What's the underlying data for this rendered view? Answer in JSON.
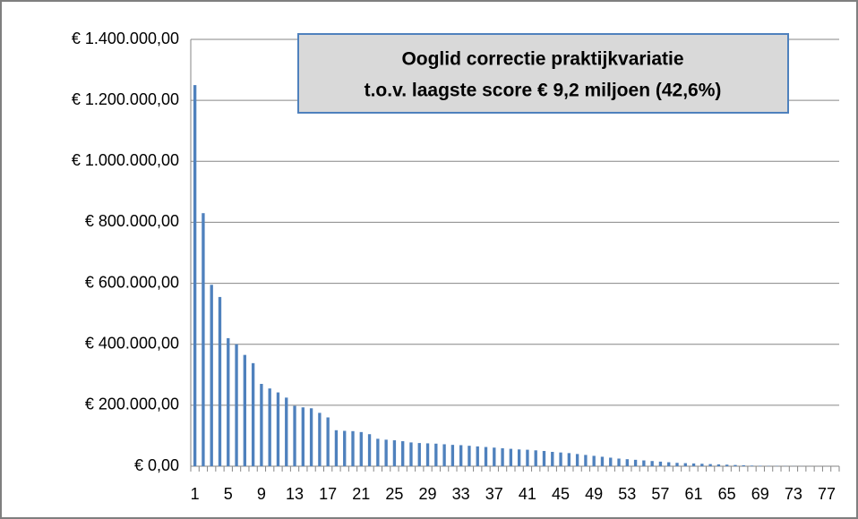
{
  "chart_data": {
    "type": "bar",
    "annotation": [
      "Ooglid correctie praktijkvariatie",
      "t.o.v. laagste score € 9,2 miljoen (42,6%)"
    ],
    "categories": [
      "1",
      null,
      null,
      null,
      "5",
      null,
      null,
      null,
      "9",
      null,
      null,
      null,
      "13",
      null,
      null,
      null,
      "17",
      null,
      null,
      null,
      "21",
      null,
      null,
      null,
      "25",
      null,
      null,
      null,
      "29",
      null,
      null,
      null,
      "33",
      null,
      null,
      null,
      "37",
      null,
      null,
      null,
      "41",
      null,
      null,
      null,
      "45",
      null,
      null,
      null,
      "49",
      null,
      null,
      null,
      "53",
      null,
      null,
      null,
      "57",
      null,
      null,
      null,
      "61",
      null,
      null,
      null,
      "65",
      null,
      null,
      null,
      "69",
      null,
      null,
      null,
      "73",
      null,
      null,
      null,
      "77",
      null
    ],
    "values": [
      1250000,
      830000,
      595000,
      555000,
      420000,
      400000,
      365000,
      338000,
      270000,
      255000,
      242000,
      225000,
      198000,
      193000,
      190000,
      175000,
      160000,
      118000,
      116000,
      115000,
      112000,
      105000,
      90000,
      87000,
      85000,
      82000,
      78000,
      76000,
      75000,
      74000,
      72000,
      70000,
      69000,
      67000,
      65000,
      63000,
      61000,
      59000,
      57000,
      55000,
      54000,
      52000,
      50000,
      47000,
      45000,
      43000,
      40000,
      37000,
      34000,
      31000,
      28000,
      25000,
      23000,
      21000,
      19000,
      17000,
      15000,
      13000,
      11000,
      10000,
      9000,
      8000,
      7000,
      6000,
      5000,
      4000,
      3000,
      2000,
      1500,
      1000,
      800,
      600,
      400,
      300,
      200,
      100,
      50,
      0
    ],
    "color": "#4f81bd",
    "ylim": [
      0,
      1400000
    ],
    "yticks": [
      {
        "value": 0,
        "label": "€ 0,00"
      },
      {
        "value": 200000,
        "label": "€ 200.000,00"
      },
      {
        "value": 400000,
        "label": "€ 400.000,00"
      },
      {
        "value": 600000,
        "label": "€ 600.000,00"
      },
      {
        "value": 800000,
        "label": "€ 800.000,00"
      },
      {
        "value": 1000000,
        "label": "€ 1.000.000,00"
      },
      {
        "value": 1200000,
        "label": "€ 1.200.000,00"
      },
      {
        "value": 1400000,
        "label": "€ 1.400.000,00"
      }
    ],
    "grid": true
  }
}
